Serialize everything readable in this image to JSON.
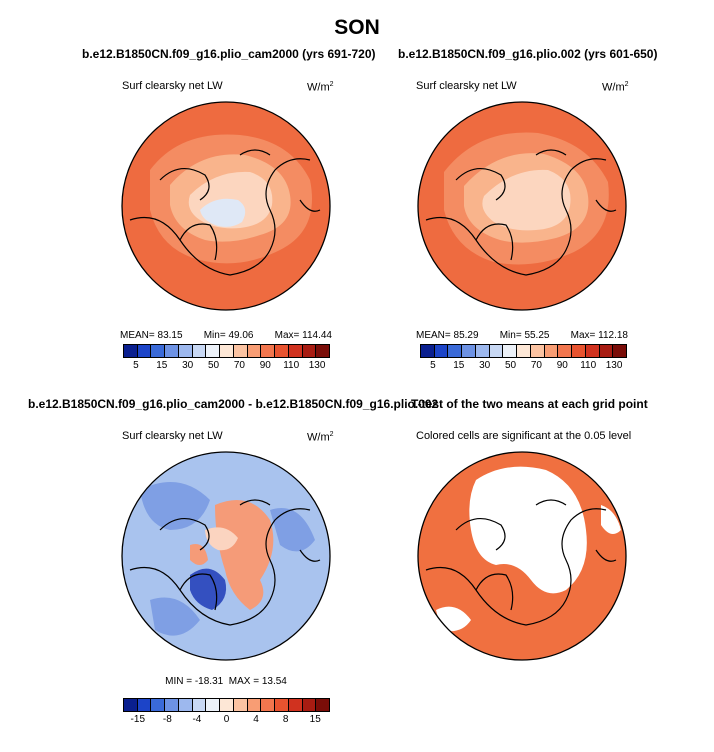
{
  "title": "SON",
  "panels": {
    "top_left": {
      "title": "b.e12.B1850CN.f09_g16.plio_cam2000 (yrs 691-720)",
      "subtitle": "Surf clearsky net LW",
      "units_base": "W/m",
      "units_exp": "2",
      "stats": {
        "mean_label": "MEAN=",
        "mean": "83.15",
        "min_label": "Min=",
        "min": "49.06",
        "max_label": "Max=",
        "max": "114.44"
      }
    },
    "top_right": {
      "title": "b.e12.B1850CN.f09_g16.plio.002 (yrs 601-650)",
      "subtitle": "Surf clearsky net LW",
      "units_base": "W/m",
      "units_exp": "2",
      "stats": {
        "mean_label": "MEAN=",
        "mean": "85.29",
        "min_label": "Min=",
        "min": "55.25",
        "max_label": "Max=",
        "max": "112.18"
      }
    },
    "bottom_left": {
      "title": "b.e12.B1850CN.f09_g16.plio_cam2000 - b.e12.B1850CN.f09_g16.plio.002",
      "subtitle": "Surf clearsky net LW",
      "units_base": "W/m",
      "units_exp": "2",
      "stats": {
        "min_label": "MIN =",
        "min": "-18.31",
        "max_label": "MAX =",
        "max": "13.54"
      }
    },
    "bottom_right": {
      "title": "T-test of the two means at each grid point",
      "subtitle": "Colored cells are significant at the 0.05 level"
    }
  },
  "colorbars": {
    "abs": {
      "colors": [
        "#0a1f8f",
        "#1c44c8",
        "#3a6ad8",
        "#6d92e4",
        "#9db8ee",
        "#c8d8f4",
        "#ecf1f8",
        "#fde7d6",
        "#fbc3a2",
        "#f89d74",
        "#f2764e",
        "#e8532f",
        "#d0321f",
        "#a81c12",
        "#7a0d08"
      ],
      "ticks": [
        "5",
        "15",
        "30",
        "50",
        "70",
        "90",
        "110",
        "130"
      ]
    },
    "diff": {
      "colors": [
        "#0a1f8f",
        "#1c44c8",
        "#3a6ad8",
        "#6d92e4",
        "#9db8ee",
        "#c8d8f4",
        "#ecf1f8",
        "#fde7d6",
        "#fbc3a2",
        "#f89d74",
        "#f2764e",
        "#e8532f",
        "#d0321f",
        "#a81c12",
        "#7a0d08"
      ],
      "ticks": [
        "-15",
        "-8",
        "-4",
        "0",
        "4",
        "8",
        "15"
      ]
    }
  },
  "map_colors": {
    "abs_outer": "#ee6b40",
    "abs_mid": "#f48c62",
    "abs_light": "#f9b48c",
    "abs_pale": "#fcd6bf",
    "abs_ice": "#dfe8f6",
    "diff_base": "#a9c3ee",
    "diff_blue": "#7f9fe4",
    "diff_deep": "#3450c0",
    "diff_pos": "#f59b78",
    "diff_pale": "#fbd4c0",
    "sig_fill": "#f07040",
    "not_sig": "#ffffff",
    "coast": "#000000"
  }
}
